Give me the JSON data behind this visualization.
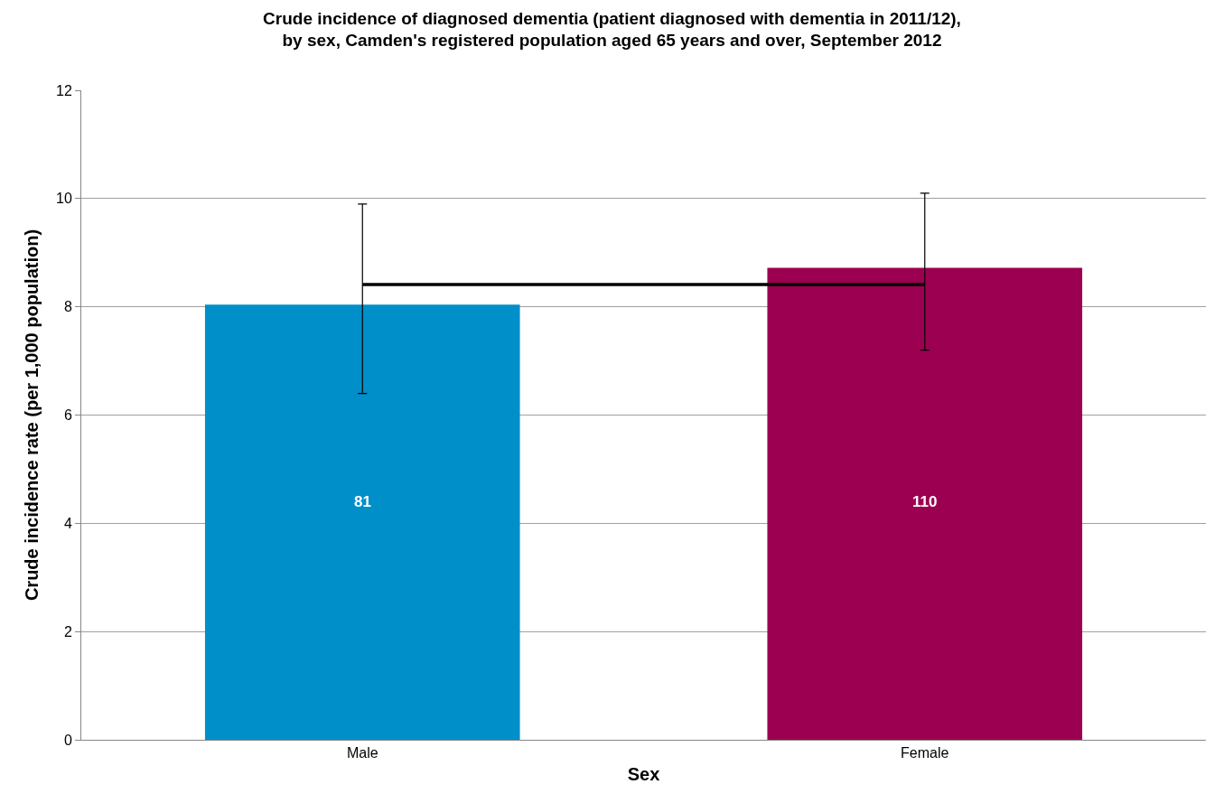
{
  "chart_data": {
    "type": "bar",
    "title": "Crude incidence of diagnosed dementia (patient diagnosed with dementia in 2011/12),\nby sex, Camden's registered population aged 65 years and over, September 2012",
    "xlabel": "Sex",
    "ylabel": "Crude incidence rate (per 1,000 population)",
    "categories": [
      "Male",
      "Female"
    ],
    "series": [
      {
        "type": "bar",
        "colors": [
          "#008fc8",
          "#9c0050"
        ],
        "values": [
          8.04,
          8.72
        ],
        "errors": [
          [
            6.4,
            9.9
          ],
          [
            7.2,
            10.1
          ]
        ]
      },
      {
        "type": "line",
        "color": "#000000",
        "values": [
          8.41,
          8.41
        ],
        "marker": "none",
        "line_style": "solid"
      }
    ],
    "annotations": [
      "81",
      "110"
    ],
    "ylim": [
      0,
      12
    ],
    "yticks": [
      0,
      2,
      4,
      6,
      8,
      10,
      12
    ],
    "grid": "y"
  }
}
